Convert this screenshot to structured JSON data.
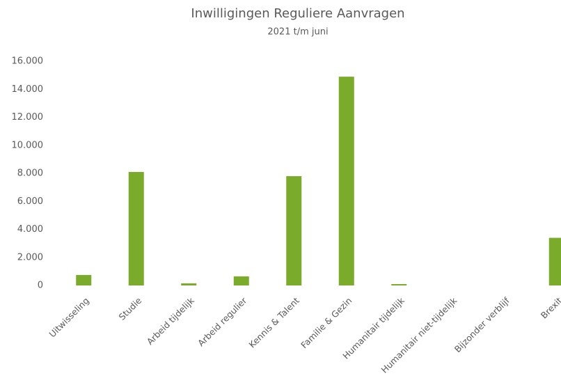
{
  "chart_data": {
    "type": "bar",
    "title": "Inwilligingen Reguliere Aanvragen",
    "subtitle": "2021 t/m juni",
    "categories": [
      "Uitwisseling",
      "Studie",
      "Arbeid tijdelijk",
      "Arbeid regulier",
      "Kennis & Talent",
      "Familie & Gezin",
      "Humanitair tijdelijk",
      "Humanitair niet-tijdelijk",
      "Bijzonder verblijf",
      "Brexit"
    ],
    "values": [
      750,
      8100,
      150,
      650,
      7800,
      14900,
      100,
      0,
      0,
      3400
    ],
    "color": "#7aab2a",
    "ylim": [
      0,
      16000
    ],
    "yticks": [
      0,
      {
        "value": 2000,
        "label": "2.000"
      },
      {
        "value": 4000,
        "label": "4.000"
      },
      {
        "value": 6000,
        "label": "6.000"
      },
      {
        "value": 8000,
        "label": "8.000"
      },
      {
        "value": 10000,
        "label": "10.000"
      },
      {
        "value": 12000,
        "label": "12.000"
      },
      {
        "value": 14000,
        "label": "14.000"
      },
      {
        "value": 16000,
        "label": "16.000"
      }
    ],
    "grid": false
  }
}
